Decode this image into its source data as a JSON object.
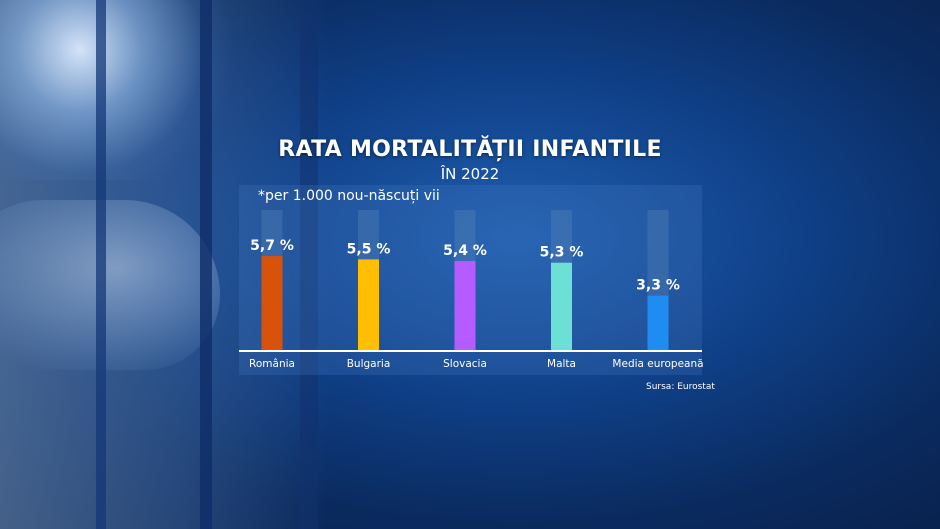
{
  "title": "RATA MORTALITĂȚII INFANTILE",
  "subtitle": "ÎN 2022",
  "note": "*per 1.000 nou-născuți vii",
  "source": "Sursa: Eurostat",
  "chart_data": {
    "type": "bar",
    "title": "RATA MORTALITĂȚII INFANTILE",
    "subtitle": "ÎN 2022",
    "categories": [
      "România",
      "Bulgaria",
      "Slovacia",
      "Malta",
      "Media europeană"
    ],
    "values": [
      5.7,
      5.5,
      5.4,
      5.3,
      3.3
    ],
    "value_labels": [
      "5,7 %",
      "5,5 %",
      "5,4 %",
      "5,3 %",
      "3,3 %"
    ],
    "colors": [
      "#d9520b",
      "#ffbf00",
      "#b45cff",
      "#6de0d6",
      "#1f8cf2"
    ],
    "track_color": "#5d86b8",
    "ylim": [
      0,
      8.5
    ],
    "grid": false,
    "legend": "none"
  }
}
